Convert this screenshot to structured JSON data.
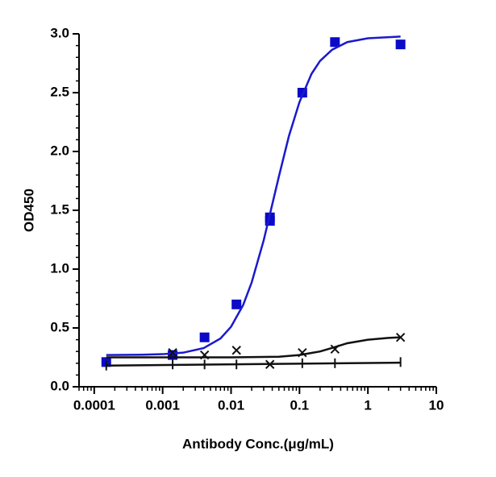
{
  "chart_data": {
    "type": "scatter",
    "xlabel": "Antibody Conc.(μg/mL)",
    "ylabel": "OD450",
    "xscale": "log",
    "xlim": [
      6e-05,
      10
    ],
    "ylim": [
      0,
      3
    ],
    "xticks": [
      0.0001,
      0.001,
      0.01,
      0.1,
      1,
      10
    ],
    "yticks": [
      {
        "value": 0,
        "label": "0.0"
      },
      {
        "value": 0.5,
        "label": "0.5"
      },
      {
        "value": 1,
        "label": "1.0"
      },
      {
        "value": 1.5,
        "label": "1.5"
      },
      {
        "value": 2,
        "label": "2.0"
      },
      {
        "value": 2.5,
        "label": "2.5"
      },
      {
        "value": 3,
        "label": "3.0"
      }
    ],
    "series": [
      {
        "color": "#0a0ac8",
        "marker": "square",
        "x": [
          0.00015,
          0.0014,
          0.0041,
          0.012,
          0.037,
          0.037,
          0.11,
          0.33,
          3
        ],
        "values": [
          0.21,
          0.27,
          0.42,
          0.7,
          1.41,
          1.44,
          2.5,
          2.93,
          2.91
        ]
      },
      {
        "color": "#1a1acc",
        "marker": "none",
        "x": [
          0.00015,
          0.0005,
          0.001,
          0.002,
          0.004,
          0.007,
          0.01,
          0.015,
          0.02,
          0.03,
          0.04,
          0.05,
          0.07,
          0.1,
          0.15,
          0.2,
          0.3,
          0.5,
          1,
          3
        ],
        "values": [
          0.27,
          0.272,
          0.277,
          0.29,
          0.329,
          0.41,
          0.51,
          0.694,
          0.886,
          1.245,
          1.55,
          1.787,
          2.13,
          2.42,
          2.66,
          2.77,
          2.865,
          2.93,
          2.962,
          2.977
        ]
      },
      {
        "color": "#111111",
        "marker": "cross",
        "x": [
          0.0014,
          0.0041,
          0.012,
          0.037,
          0.11,
          0.33,
          3
        ],
        "values": [
          0.29,
          0.27,
          0.31,
          0.19,
          0.29,
          0.32,
          0.42
        ]
      },
      {
        "color": "#111111",
        "marker": "none",
        "x": [
          0.00015,
          0.01,
          0.05,
          0.1,
          0.2,
          0.3,
          0.5,
          1,
          2,
          3
        ],
        "values": [
          0.25,
          0.25,
          0.255,
          0.27,
          0.3,
          0.33,
          0.37,
          0.4,
          0.415,
          0.42
        ]
      },
      {
        "color": "#111111",
        "marker": "vbar",
        "x": [
          0.00015,
          0.0014,
          0.0041,
          0.012,
          0.11,
          0.33,
          3
        ],
        "values": [
          0.18,
          0.19,
          0.19,
          0.19,
          0.2,
          0.2,
          0.21
        ]
      },
      {
        "color": "#111111",
        "marker": "none",
        "x": [
          0.00015,
          3
        ],
        "values": [
          0.18,
          0.205
        ]
      }
    ]
  }
}
